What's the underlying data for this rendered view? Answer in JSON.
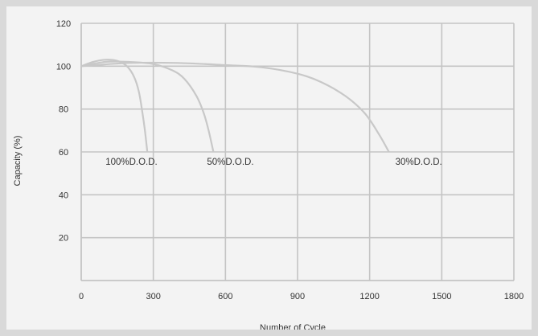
{
  "chart_data": {
    "type": "line",
    "title": "",
    "xlabel": "Number of Cycle",
    "ylabel": "Capacity (%)",
    "xlim": [
      0,
      1800
    ],
    "ylim": [
      0,
      120
    ],
    "xticks": [
      0,
      300,
      600,
      900,
      1200,
      1500,
      1800
    ],
    "yticks": [
      20,
      40,
      60,
      80,
      100,
      120
    ],
    "grid": true,
    "legend": "none",
    "colors": {
      "line": "#c8c8c8",
      "grid": "#c4c4c4",
      "text": "#333333",
      "background": "#f3f3f3"
    },
    "series": [
      {
        "name": "100%D.O.D.",
        "x": [
          0,
          50,
          100,
          150,
          190,
          220,
          240,
          255,
          265,
          275
        ],
        "y": [
          100,
          102,
          103,
          102.5,
          100,
          95,
          88,
          78,
          70,
          60
        ]
      },
      {
        "name": "50%D.O.D.",
        "x": [
          0,
          100,
          200,
          300,
          380,
          430,
          480,
          510,
          530,
          550
        ],
        "y": [
          100,
          102,
          102,
          101,
          98,
          94,
          86,
          78,
          70,
          60
        ]
      },
      {
        "name": "30%D.O.D.",
        "x": [
          0,
          200,
          400,
          600,
          750,
          900,
          1000,
          1100,
          1180,
          1240,
          1280
        ],
        "y": [
          100,
          101.5,
          101.5,
          100.5,
          99.5,
          96.5,
          92.5,
          86,
          78,
          68,
          60
        ]
      }
    ],
    "annotations": [
      "100%D.O.D.",
      "50%D.O.D.",
      "30%D.O.D."
    ]
  }
}
